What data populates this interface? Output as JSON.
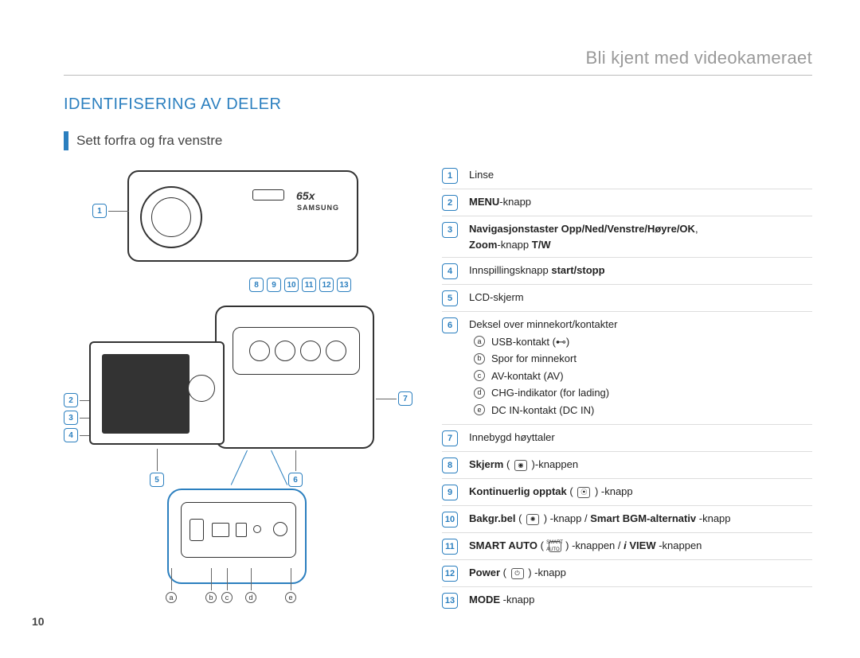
{
  "chapter_title": "Bli kjent med videokameraet",
  "section_title": "IDENTIFISERING AV DELER",
  "subsection_title": "Sett forfra og fra venstre",
  "page_number": "10",
  "colors": {
    "accent": "#2b7fbf",
    "muted": "#999999",
    "rule": "#dddddd",
    "text": "#222222"
  },
  "diagram": {
    "callouts_top": [
      "8",
      "9",
      "10",
      "11",
      "12",
      "13"
    ],
    "callouts_left": [
      "1",
      "2",
      "3",
      "4",
      "5"
    ],
    "callouts_right_inner": [
      "6",
      "7"
    ],
    "detail_letters": [
      "a",
      "b",
      "c",
      "d",
      "e"
    ],
    "brand_text": "SAMSUNG",
    "zoom_text": "65x"
  },
  "legend": [
    {
      "num": "1",
      "html": "Linse"
    },
    {
      "num": "2",
      "html": "<span class='b'>MENU</span>-knapp"
    },
    {
      "num": "3",
      "html": "<span class='b'>Navigasjonstaster Opp/Ned/Venstre/Høyre/OK</span>,<br><span class='b'>Zoom</span>-knapp <span class='b'>T/W</span>"
    },
    {
      "num": "4",
      "html": "Innspillingsknapp <span class='b'>start/stopp</span>"
    },
    {
      "num": "5",
      "html": "LCD-skjerm"
    },
    {
      "num": "6",
      "html": "Deksel over minnekort/kontakter",
      "sub": [
        {
          "letter": "a",
          "text": "USB-kontakt (⊷)"
        },
        {
          "letter": "b",
          "text": "Spor for minnekort"
        },
        {
          "letter": "c",
          "text": "AV-kontakt (AV)"
        },
        {
          "letter": "d",
          "text": "CHG-indikator (for lading)"
        },
        {
          "letter": "e",
          "text": "DC IN-kontakt (DC IN)"
        }
      ]
    },
    {
      "num": "7",
      "html": "Innebygd høyttaler"
    },
    {
      "num": "8",
      "html": "<span class='b'>Skjerm</span> ( <span class='icon-inline'>◉</span> )-knappen"
    },
    {
      "num": "9",
      "html": "<span class='b'>Kontinuerlig opptak</span> ( <span class='icon-inline'>⦿</span> ) -knapp"
    },
    {
      "num": "10",
      "html": "<span class='b'>Bakgr.bel</span> ( <span class='icon-inline'>✺</span> ) -knapp / <span class='b'>Smart BGM-alternativ</span> -knapp"
    },
    {
      "num": "11",
      "html": "<span class='b'>SMART AUTO</span> ( <span class='icon-inline' style='font-size:6px;'>SMART<br>AUTO</span> ) -knappen / <span class='b'><i>i</i> VIEW</span> -knappen"
    },
    {
      "num": "12",
      "html": "<span class='b'>Power</span> ( <span class='icon-inline'>⏻</span> ) -knapp"
    },
    {
      "num": "13",
      "html": "<span class='b'>MODE</span> -knapp"
    }
  ]
}
